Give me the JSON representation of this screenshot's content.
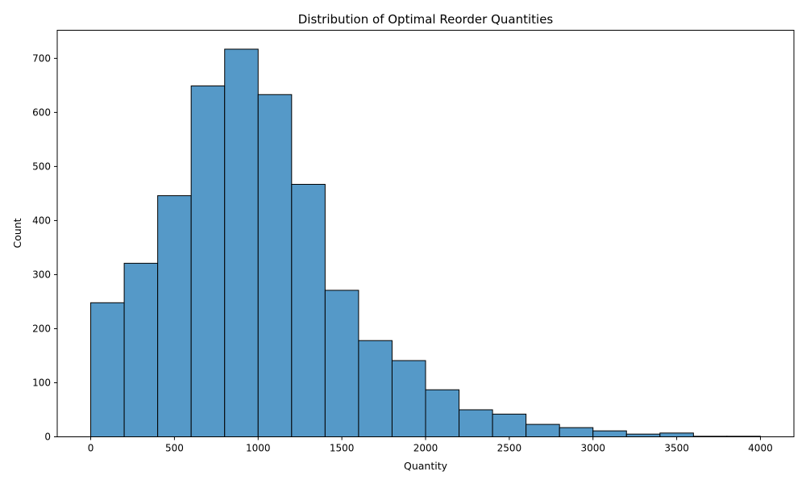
{
  "chart_data": {
    "type": "bar",
    "title": "Distribution of Optimal Reorder Quantities",
    "xlabel": "Quantity",
    "ylabel": "Count",
    "bin_width": 200,
    "bins": [
      {
        "start": 0,
        "end": 200,
        "count": 248
      },
      {
        "start": 200,
        "end": 400,
        "count": 321
      },
      {
        "start": 400,
        "end": 600,
        "count": 446
      },
      {
        "start": 600,
        "end": 800,
        "count": 649
      },
      {
        "start": 800,
        "end": 1000,
        "count": 717
      },
      {
        "start": 1000,
        "end": 1200,
        "count": 633
      },
      {
        "start": 1200,
        "end": 1400,
        "count": 467
      },
      {
        "start": 1400,
        "end": 1600,
        "count": 271
      },
      {
        "start": 1600,
        "end": 1800,
        "count": 178
      },
      {
        "start": 1800,
        "end": 2000,
        "count": 141
      },
      {
        "start": 2000,
        "end": 2200,
        "count": 87
      },
      {
        "start": 2200,
        "end": 2400,
        "count": 50
      },
      {
        "start": 2400,
        "end": 2600,
        "count": 42
      },
      {
        "start": 2600,
        "end": 2800,
        "count": 23
      },
      {
        "start": 2800,
        "end": 3000,
        "count": 17
      },
      {
        "start": 3000,
        "end": 3200,
        "count": 11
      },
      {
        "start": 3200,
        "end": 3400,
        "count": 5
      },
      {
        "start": 3400,
        "end": 3600,
        "count": 7
      },
      {
        "start": 3600,
        "end": 3800,
        "count": 1
      },
      {
        "start": 3800,
        "end": 4000,
        "count": 1
      }
    ],
    "xlim": [
      -200,
      4200
    ],
    "ylim": [
      0,
      752
    ],
    "xticks": [
      0,
      500,
      1000,
      1500,
      2000,
      2500,
      3000,
      3500,
      4000
    ],
    "yticks": [
      0,
      100,
      200,
      300,
      400,
      500,
      600,
      700
    ],
    "grid": false,
    "bar_color": "#5599c8",
    "edge_color": "#000000"
  }
}
